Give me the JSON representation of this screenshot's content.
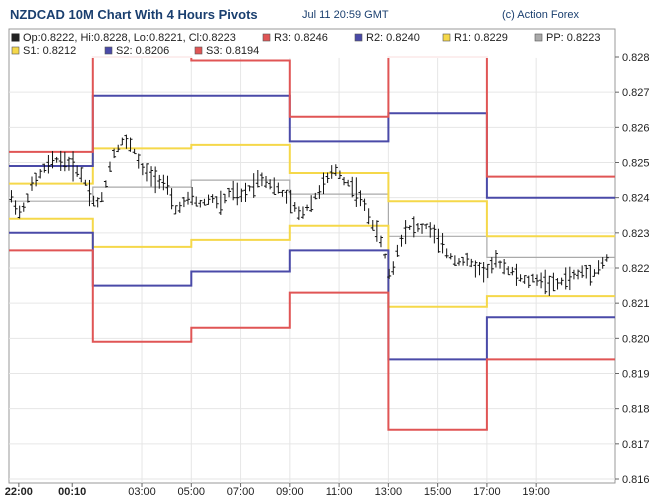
{
  "header": {
    "title": "NZDCAD 10M Chart With 4 Hours Pivots",
    "timestamp": "Jul 11 20:59 GMT",
    "credit": "(c) Action Forex"
  },
  "chart_data": {
    "type": "line",
    "title": "NZDCAD 10M Chart With 4 Hours Pivots",
    "ylim": [
      0.816,
      0.8285
    ],
    "y_ticks": [
      "0.816",
      "0.817",
      "0.818",
      "0.819",
      "0.820",
      "0.821",
      "0.822",
      "0.823",
      "0.824",
      "0.825",
      "0.826",
      "0.827",
      "0.828"
    ],
    "x_ticks": [
      {
        "label": "22:00",
        "bold": true,
        "x_hour": -1.0
      },
      {
        "label": "00:10",
        "bold": true,
        "x_hour": 1.1667
      },
      {
        "label": "03:00",
        "bold": false,
        "x_hour": 4.0
      },
      {
        "label": "05:00",
        "bold": false,
        "x_hour": 6.0
      },
      {
        "label": "07:00",
        "bold": false,
        "x_hour": 8.0
      },
      {
        "label": "09:00",
        "bold": false,
        "x_hour": 10.0
      },
      {
        "label": "11:00",
        "bold": false,
        "x_hour": 12.0
      },
      {
        "label": "13:00",
        "bold": false,
        "x_hour": 14.0
      },
      {
        "label": "15:00",
        "bold": false,
        "x_hour": 16.0
      },
      {
        "label": "17:00",
        "bold": false,
        "x_hour": 18.0
      },
      {
        "label": "19:00",
        "bold": false,
        "x_hour": 20.0
      }
    ],
    "x_range_hours": [
      -1.4,
      23.2
    ],
    "ohlc_legend": "Op:0.8222, Hi:0.8228, Lo:0.8221, Cl:0.8223",
    "pivot_legend": [
      {
        "key": "R3",
        "label": "R3: 0.8246",
        "color": "#e05555"
      },
      {
        "key": "R2",
        "label": "R2: 0.8240",
        "color": "#4a4aa8"
      },
      {
        "key": "R1",
        "label": "R1: 0.8229",
        "color": "#f5d84a"
      },
      {
        "key": "PP",
        "label": "PP: 0.8223",
        "color": "#aaaaaa"
      },
      {
        "key": "S1",
        "label": "S1: 0.8212",
        "color": "#f5d84a"
      },
      {
        "key": "S2",
        "label": "S2: 0.8206",
        "color": "#4a4aa8"
      },
      {
        "key": "S3",
        "label": "S3: 0.8194",
        "color": "#e05555"
      }
    ],
    "pivot_segments": [
      {
        "x_start": -1.4,
        "x_end": 2.0,
        "R3": 0.8253,
        "R2": 0.8249,
        "R1": 0.8244,
        "PP": 0.8239,
        "S1": 0.8234,
        "S2": 0.823,
        "S3": 0.8225
      },
      {
        "x_start": 2.0,
        "x_end": 6.0,
        "R3": 0.828,
        "R2": 0.8269,
        "R1": 0.8254,
        "PP": 0.8243,
        "S1": 0.8226,
        "S2": 0.8215,
        "S3": 0.8199
      },
      {
        "x_start": 6.0,
        "x_end": 10.0,
        "R3": 0.8279,
        "R2": 0.8269,
        "R1": 0.8255,
        "PP": 0.8245,
        "S1": 0.8228,
        "S2": 0.8219,
        "S3": 0.8203
      },
      {
        "x_start": 10.0,
        "x_end": 14.0,
        "R3": 0.8263,
        "R2": 0.8256,
        "R1": 0.8247,
        "PP": 0.8241,
        "S1": 0.8232,
        "S2": 0.8225,
        "S3": 0.8213
      },
      {
        "x_start": 14.0,
        "x_end": 18.0,
        "R3": 0.828,
        "R2": 0.8264,
        "R1": 0.8239,
        "PP": 0.8229,
        "S1": 0.8209,
        "S2": 0.8194,
        "S3": 0.8174
      },
      {
        "x_start": 18.0,
        "x_end": 23.2,
        "R3": 0.8246,
        "R2": 0.824,
        "R1": 0.8229,
        "PP": 0.8223,
        "S1": 0.8212,
        "S2": 0.8206,
        "S3": 0.8194
      }
    ],
    "price_path": [
      [
        -1.3,
        0.824
      ],
      [
        -0.9,
        0.8235
      ],
      [
        -0.5,
        0.8243
      ],
      [
        0.0,
        0.8248
      ],
      [
        0.5,
        0.8251
      ],
      [
        1.0,
        0.825
      ],
      [
        1.5,
        0.8247
      ],
      [
        1.8,
        0.8243
      ],
      [
        2.1,
        0.8238
      ],
      [
        2.4,
        0.824
      ],
      [
        2.8,
        0.8252
      ],
      [
        3.2,
        0.8256
      ],
      [
        3.6,
        0.8255
      ],
      [
        4.0,
        0.8248
      ],
      [
        4.4,
        0.8246
      ],
      [
        4.8,
        0.8245
      ],
      [
        5.1,
        0.8242
      ],
      [
        5.3,
        0.8236
      ],
      [
        5.6,
        0.8238
      ],
      [
        6.0,
        0.824
      ],
      [
        6.4,
        0.8238
      ],
      [
        6.8,
        0.824
      ],
      [
        7.2,
        0.8238
      ],
      [
        7.6,
        0.8242
      ],
      [
        8.0,
        0.824
      ],
      [
        8.4,
        0.8243
      ],
      [
        8.8,
        0.8246
      ],
      [
        9.2,
        0.8244
      ],
      [
        9.6,
        0.8242
      ],
      [
        10.0,
        0.8239
      ],
      [
        10.4,
        0.8235
      ],
      [
        10.8,
        0.8238
      ],
      [
        11.2,
        0.8242
      ],
      [
        11.6,
        0.8246
      ],
      [
        11.9,
        0.8248
      ],
      [
        12.2,
        0.8245
      ],
      [
        12.6,
        0.8243
      ],
      [
        13.0,
        0.8238
      ],
      [
        13.4,
        0.8232
      ],
      [
        13.8,
        0.8226
      ],
      [
        14.0,
        0.8218
      ],
      [
        14.2,
        0.822
      ],
      [
        14.4,
        0.8226
      ],
      [
        14.7,
        0.8231
      ],
      [
        15.0,
        0.8232
      ],
      [
        15.3,
        0.8231
      ],
      [
        15.6,
        0.8232
      ],
      [
        16.0,
        0.8228
      ],
      [
        16.4,
        0.8224
      ],
      [
        16.8,
        0.8222
      ],
      [
        17.2,
        0.8222
      ],
      [
        17.6,
        0.822
      ],
      [
        18.0,
        0.8219
      ],
      [
        18.4,
        0.8222
      ],
      [
        18.8,
        0.822
      ],
      [
        19.2,
        0.8218
      ],
      [
        19.6,
        0.8216
      ],
      [
        20.0,
        0.8217
      ],
      [
        20.4,
        0.8216
      ],
      [
        20.8,
        0.8215
      ],
      [
        21.2,
        0.8217
      ],
      [
        21.6,
        0.8218
      ],
      [
        22.0,
        0.8219
      ],
      [
        22.4,
        0.8219
      ],
      [
        22.9,
        0.8223
      ]
    ]
  }
}
